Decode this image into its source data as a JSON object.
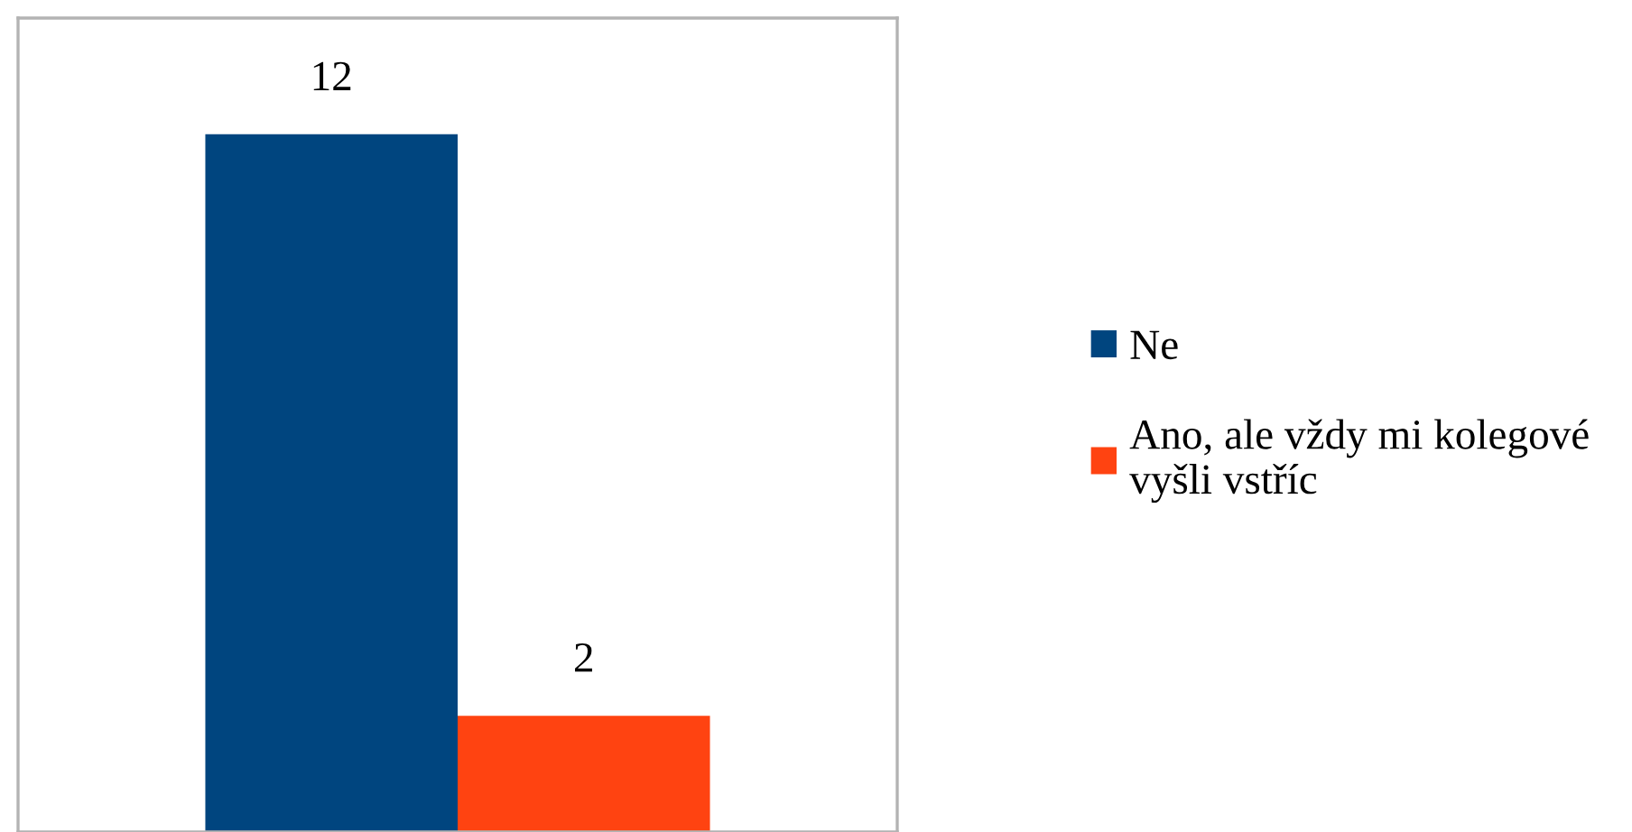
{
  "chart_data": {
    "type": "bar",
    "categories": [
      null
    ],
    "series": [
      {
        "name": "Ne",
        "color": "#00457f",
        "values": [
          12
        ]
      },
      {
        "name": "Ano, ale vždy mi kolegové\nvyšli vstříc",
        "color": "#ff4311",
        "values": [
          2
        ]
      }
    ],
    "data_labels": true,
    "legend": "right",
    "grid": false
  }
}
